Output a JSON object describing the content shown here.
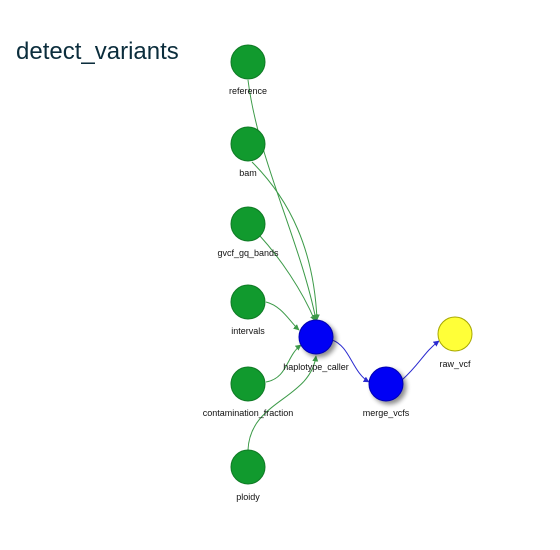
{
  "title": "detect_variants",
  "colors": {
    "input": "#119a2e",
    "input_stroke": "#0f7a25",
    "step": "#0000f5",
    "step_stroke": "#0000b0",
    "output": "#ffff38",
    "output_stroke": "#a6a600",
    "input_edge": "#3c9a48",
    "step_edge": "#2a2ad0",
    "title": "#0b2d3c"
  },
  "nodes": [
    {
      "id": "reference",
      "label": "reference",
      "kind": "input"
    },
    {
      "id": "bam",
      "label": "bam",
      "kind": "input"
    },
    {
      "id": "gvcf_gq_bands",
      "label": "gvcf_gq_bands",
      "kind": "input"
    },
    {
      "id": "intervals",
      "label": "intervals",
      "kind": "input"
    },
    {
      "id": "contamination_fraction",
      "label": "contamination_fraction",
      "kind": "input"
    },
    {
      "id": "ploidy",
      "label": "ploidy",
      "kind": "input"
    },
    {
      "id": "haplotype_caller",
      "label": "haplotype_caller",
      "kind": "step"
    },
    {
      "id": "merge_vcfs",
      "label": "merge_vcfs",
      "kind": "step"
    },
    {
      "id": "raw_vcf",
      "label": "raw_vcf",
      "kind": "output"
    }
  ],
  "edges": [
    {
      "from": "reference",
      "to": "haplotype_caller"
    },
    {
      "from": "bam",
      "to": "haplotype_caller"
    },
    {
      "from": "gvcf_gq_bands",
      "to": "haplotype_caller"
    },
    {
      "from": "intervals",
      "to": "haplotype_caller"
    },
    {
      "from": "contamination_fraction",
      "to": "haplotype_caller"
    },
    {
      "from": "ploidy",
      "to": "haplotype_caller"
    },
    {
      "from": "haplotype_caller",
      "to": "merge_vcfs"
    },
    {
      "from": "merge_vcfs",
      "to": "raw_vcf"
    }
  ]
}
